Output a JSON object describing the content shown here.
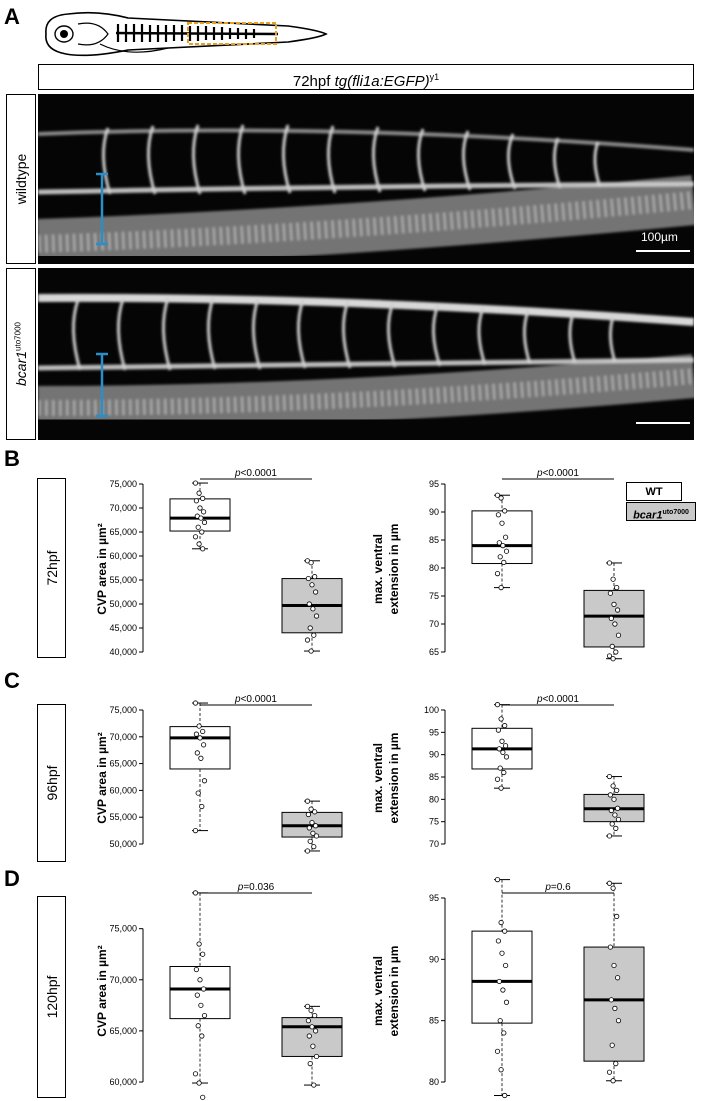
{
  "panels": {
    "a": "A",
    "b": "B",
    "c": "C",
    "d": "D"
  },
  "header": {
    "stage": "72hpf",
    "transgene": "tg(fli1a:EGFP)",
    "allele_sup": "y1"
  },
  "rows": {
    "wildtype": "wildtype",
    "mutant_name": "bcar1",
    "mutant_sup": "uto7000"
  },
  "scale_label": "100µm",
  "legend": {
    "wt": "WT",
    "mut_name": "bcar1",
    "mut_sup": "uto7000"
  },
  "row_labels": {
    "b": "72hpf",
    "c": "96hpf",
    "d": "120hpf"
  },
  "colors": {
    "wt_box": "#ffffff",
    "mut_box": "#c9c9c9",
    "bracket": "#2a8fc8",
    "embryo_roi": "#e8a020"
  },
  "chart_data": [
    {
      "type": "boxplot",
      "row": "72hpf",
      "ylabel": "CVP area in µm²",
      "ylim": [
        40000,
        75000
      ],
      "yticks": [
        "40,000",
        "45,000",
        "50,000",
        "55,000",
        "60,000",
        "65,000",
        "70,000",
        "75,000"
      ],
      "ytick_values": [
        40000,
        45000,
        50000,
        55000,
        60000,
        65000,
        70000,
        75000
      ],
      "pvalue": "p<0.0001",
      "series": [
        {
          "group": "WT",
          "min": 61500,
          "q1": 65200,
          "median": 67900,
          "q3": 71900,
          "max": 75200,
          "points": [
            75200,
            73100,
            72000,
            71500,
            70000,
            69200,
            68300,
            67900,
            67000,
            66000,
            65000,
            64000,
            62500,
            61500
          ]
        },
        {
          "group": "bcar1",
          "min": 40200,
          "q1": 44000,
          "median": 49700,
          "q3": 55300,
          "max": 59000,
          "points": [
            59000,
            58600,
            55700,
            55300,
            54000,
            52500,
            50000,
            49000,
            47500,
            45000,
            43500,
            42500,
            40200
          ]
        }
      ]
    },
    {
      "type": "boxplot",
      "row": "72hpf",
      "ylabel": "max. ventral extension in µm",
      "ylim": [
        65,
        95
      ],
      "yticks": [
        "65",
        "70",
        "75",
        "80",
        "85",
        "90",
        "95"
      ],
      "ytick_values": [
        65,
        70,
        75,
        80,
        85,
        90,
        95
      ],
      "pvalue": "p<0.0001",
      "series": [
        {
          "group": "WT",
          "min": 76.5,
          "q1": 80.8,
          "median": 84.0,
          "q3": 90.2,
          "max": 93.0,
          "points": [
            93.0,
            92.5,
            90.2,
            89.5,
            88.0,
            85.5,
            84.5,
            84.0,
            83.0,
            82.0,
            81.0,
            79.0,
            76.5
          ]
        },
        {
          "group": "bcar1",
          "min": 63.8,
          "q1": 65.9,
          "median": 71.4,
          "q3": 76.0,
          "max": 80.9,
          "points": [
            80.9,
            78.0,
            76.5,
            75.5,
            73.5,
            72.5,
            71.0,
            70.0,
            68.0,
            66.0,
            65.0,
            64.3,
            63.8
          ]
        }
      ]
    },
    {
      "type": "boxplot",
      "row": "96hpf",
      "ylabel": "CVP area in µm²",
      "ylim": [
        50000,
        75000
      ],
      "yticks": [
        "50,000",
        "55,000",
        "60,000",
        "65,000",
        "70,000",
        "75,000"
      ],
      "ytick_values": [
        50000,
        55000,
        60000,
        65000,
        70000,
        75000
      ],
      "pvalue": "p<0.0001",
      "series": [
        {
          "group": "WT",
          "min": 52500,
          "q1": 64000,
          "median": 69800,
          "q3": 71900,
          "max": 76300,
          "points": [
            76300,
            72000,
            71000,
            70500,
            69800,
            68500,
            67000,
            66000,
            61800,
            59500,
            57000,
            52500
          ]
        },
        {
          "group": "bcar1",
          "min": 48700,
          "q1": 51300,
          "median": 53400,
          "q3": 55900,
          "max": 58000,
          "points": [
            58000,
            56500,
            56000,
            55500,
            54000,
            53400,
            53000,
            52000,
            51500,
            50500,
            49500,
            48700
          ]
        }
      ]
    },
    {
      "type": "boxplot",
      "row": "96hpf",
      "ylabel": "max. ventral extension in µm",
      "ylim": [
        70,
        100
      ],
      "yticks": [
        "70",
        "75",
        "80",
        "85",
        "90",
        "95",
        "100"
      ],
      "ytick_values": [
        70,
        75,
        80,
        85,
        90,
        95,
        100
      ],
      "pvalue": "p<0.0001",
      "series": [
        {
          "group": "WT",
          "min": 82.5,
          "q1": 86.8,
          "median": 91.3,
          "q3": 95.9,
          "max": 101.2,
          "points": [
            101.2,
            98.0,
            96.5,
            95.5,
            93.0,
            92.0,
            91.3,
            90.5,
            89.5,
            87.0,
            86.0,
            84.5,
            82.5
          ]
        },
        {
          "group": "bcar1",
          "min": 71.8,
          "q1": 75.0,
          "median": 77.9,
          "q3": 81.1,
          "max": 85.1,
          "points": [
            85.1,
            83.0,
            82.0,
            81.0,
            80.0,
            78.0,
            77.5,
            76.5,
            75.5,
            74.5,
            73.5,
            71.8
          ]
        }
      ]
    },
    {
      "type": "boxplot",
      "row": "120hpf",
      "ylabel": "CVP area in µm²",
      "ylim": [
        60000,
        78000
      ],
      "yticks": [
        "60,000",
        "65,000",
        "70,000",
        "75,000"
      ],
      "ytick_values": [
        60000,
        65000,
        70000,
        75000
      ],
      "pvalue": "p=0.036",
      "series": [
        {
          "group": "WT",
          "min": 59900,
          "q1": 66200,
          "median": 69100,
          "q3": 71300,
          "max": 78500,
          "points": [
            78500,
            73500,
            72500,
            71000,
            70000,
            69100,
            68500,
            67500,
            66500,
            65500,
            64500,
            60800,
            59900,
            58500
          ]
        },
        {
          "group": "bcar1",
          "min": 59700,
          "q1": 62500,
          "median": 65400,
          "q3": 66300,
          "max": 67400,
          "points": [
            67400,
            67000,
            66500,
            66000,
            65400,
            65000,
            64500,
            63500,
            62500,
            61800,
            59700
          ]
        }
      ]
    },
    {
      "type": "boxplot",
      "row": "120hpf",
      "ylabel": "max. ventral extension in µm",
      "ylim": [
        80,
        95
      ],
      "yticks": [
        "80",
        "85",
        "90",
        "95"
      ],
      "ytick_values": [
        80,
        85,
        90,
        95
      ],
      "pvalue": "p=0.6",
      "series": [
        {
          "group": "WT",
          "min": 78.9,
          "q1": 84.8,
          "median": 88.2,
          "q3": 92.3,
          "max": 96.5,
          "points": [
            96.5,
            93.0,
            92.3,
            91.5,
            90.5,
            89.5,
            88.2,
            87.5,
            86.5,
            85.0,
            84.0,
            82.5,
            81.0,
            78.9
          ]
        },
        {
          "group": "bcar1",
          "min": 80.1,
          "q1": 81.7,
          "median": 86.7,
          "q3": 91.0,
          "max": 96.2,
          "points": [
            96.2,
            95.8,
            93.5,
            91.0,
            89.5,
            88.5,
            86.7,
            86.0,
            85.0,
            83.0,
            81.5,
            80.8,
            80.1
          ]
        }
      ]
    }
  ]
}
